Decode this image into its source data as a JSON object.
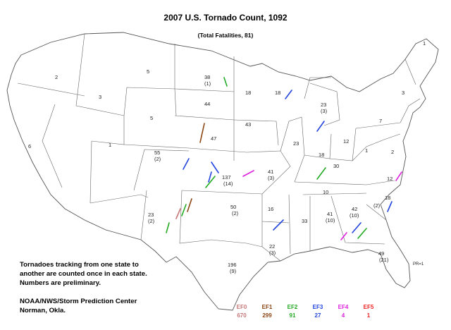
{
  "title": "2007 U.S. Tornado Count, 1092",
  "subtitle": "(Total Fatalities, 81)",
  "notes": {
    "line1": "Tornadoes tracking from one state to another are counted once in each state. Numbers are preliminary.",
    "line2": "NOAA/NWS/Storm Prediction Center Norman, Okla."
  },
  "legend": [
    {
      "label": "EF0",
      "count": "670",
      "color": "#c87878"
    },
    {
      "label": "EF1",
      "count": "299",
      "color": "#8b4513"
    },
    {
      "label": "EF2",
      "count": "91",
      "color": "#22aa22"
    },
    {
      "label": "EF3",
      "count": "27",
      "color": "#2244dd"
    },
    {
      "label": "EF4",
      "count": "4",
      "color": "#dd22dd"
    },
    {
      "label": "EF5",
      "count": "1",
      "color": "#ee2222"
    }
  ],
  "state_counts": [
    {
      "state": "WA",
      "count": "2"
    },
    {
      "state": "OR",
      "count": "3"
    },
    {
      "state": "CA",
      "count": "6"
    },
    {
      "state": "NV",
      "count": ""
    },
    {
      "state": "ID",
      "count": "3"
    },
    {
      "state": "MT",
      "count": "5"
    },
    {
      "state": "WY",
      "count": "5"
    },
    {
      "state": "UT",
      "count": "1"
    },
    {
      "state": "CO",
      "count": "55",
      "fatalities": "(2)"
    },
    {
      "state": "AZ",
      "count": ""
    },
    {
      "state": "NM",
      "count": "23",
      "fatalities": "(2)"
    },
    {
      "state": "ND",
      "count": "38",
      "fatalities": "(1)"
    },
    {
      "state": "SD",
      "count": "44"
    },
    {
      "state": "NE",
      "count": "47"
    },
    {
      "state": "KS",
      "count": "137",
      "fatalities": "(14)"
    },
    {
      "state": "OK",
      "count": "50",
      "fatalities": "(2)"
    },
    {
      "state": "TX",
      "count": "196",
      "fatalities": "(9)"
    },
    {
      "state": "MN",
      "count": "18"
    },
    {
      "state": "IA",
      "count": "43"
    },
    {
      "state": "MO",
      "count": "41",
      "fatalities": "(3)"
    },
    {
      "state": "AR",
      "count": "16"
    },
    {
      "state": "LA",
      "count": "22",
      "fatalities": "(3)"
    },
    {
      "state": "WI",
      "count": "18"
    },
    {
      "state": "IL",
      "count": "23"
    },
    {
      "state": "MI",
      "count": "23",
      "fatalities": "(3)"
    },
    {
      "state": "IN",
      "count": "18"
    },
    {
      "state": "OH",
      "count": "12"
    },
    {
      "state": "KY",
      "count": "30"
    },
    {
      "state": "TN",
      "count": "10"
    },
    {
      "state": "MS",
      "count": "33"
    },
    {
      "state": "AL",
      "count": "41",
      "fatalities": "(10)"
    },
    {
      "state": "GA",
      "count": "42",
      "fatalities": "(10)"
    },
    {
      "state": "FL",
      "count": "49",
      "fatalities": "(21)"
    },
    {
      "state": "SC",
      "count": "18",
      "fatalities": "(2)"
    },
    {
      "state": "NC",
      "count": "12"
    },
    {
      "state": "VA",
      "count": "2"
    },
    {
      "state": "WV",
      "count": "1"
    },
    {
      "state": "PA",
      "count": "7"
    },
    {
      "state": "NY",
      "count": "3"
    },
    {
      "state": "ME",
      "count": "1"
    },
    {
      "state": "PR",
      "count": "PR=1"
    }
  ]
}
